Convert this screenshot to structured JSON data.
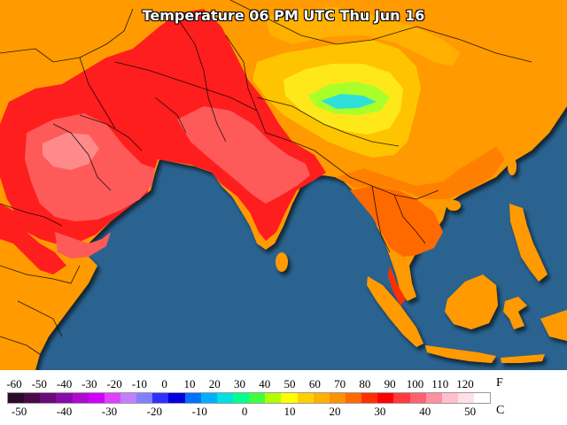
{
  "title": "Temperature 06 PM UTC Thu Jun 16",
  "legend": {
    "fahrenheit_unit": "F",
    "celsius_unit": "C",
    "fahrenheit_ticks": [
      "-60",
      "-50",
      "-40",
      "-30",
      "-20",
      "-10",
      "0",
      "10",
      "20",
      "30",
      "40",
      "50",
      "60",
      "70",
      "80",
      "90",
      "100",
      "110",
      "120"
    ],
    "celsius_ticks": [
      "-50",
      "-40",
      "-30",
      "-20",
      "-10",
      "0",
      "10",
      "20",
      "30",
      "40",
      "50"
    ],
    "colors": [
      "#2a0a2a",
      "#4a0a4a",
      "#6a0a7a",
      "#8a0aaa",
      "#b00ad0",
      "#d000ff",
      "#e040ff",
      "#c080ff",
      "#8080ff",
      "#3030ff",
      "#0000e0",
      "#0070ff",
      "#00b0ff",
      "#00e0e0",
      "#00ff90",
      "#40ff40",
      "#b0ff00",
      "#ffff00",
      "#ffd000",
      "#ffb000",
      "#ff9000",
      "#ff6a00",
      "#ff3000",
      "#ff0000",
      "#ff3a3a",
      "#ff6070",
      "#ff90a0",
      "#ffc0cc",
      "#ffe0e6",
      "#ffffff"
    ]
  },
  "colors": {
    "ocean": "#2b6390",
    "hot": "#ff1e1e",
    "very_hot": "#ff5050",
    "extreme": "#ff8a8a",
    "warm": "#ff9a00",
    "mild": "#ffc400",
    "cool": "#ffe81a",
    "cold": "#a8ff2a",
    "coldest": "#30e0d8",
    "border": "#000000"
  }
}
